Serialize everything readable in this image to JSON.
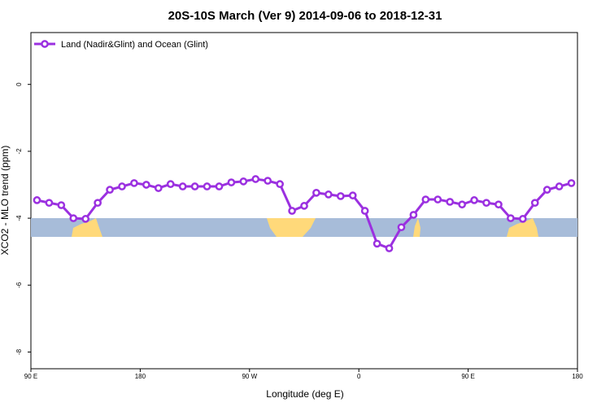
{
  "chart_data": {
    "type": "line",
    "title": "20S-10S March (Ver 9)   2014-09-06 to 2018-12-31",
    "x_label": "Longitude (deg E)",
    "y_label": "XCO2 - MLO trend (ppm)",
    "x": [
      95,
      105,
      115,
      125,
      135,
      145,
      155,
      165,
      175,
      185,
      195,
      205,
      215,
      225,
      235,
      245,
      255,
      265,
      275,
      285,
      295,
      305,
      315,
      325,
      335,
      345,
      355,
      365,
      375,
      385,
      395,
      405,
      415,
      425,
      435,
      445,
      455,
      465,
      475,
      485,
      495,
      505,
      515,
      525,
      535
    ],
    "series": [
      {
        "name": "Land (Nadir&Glint) and Ocean (Glint)",
        "color": "#9b30e0",
        "values": [
          -3.46,
          -3.54,
          -3.61,
          -4.0,
          -4.02,
          -3.54,
          -3.15,
          -3.05,
          -2.95,
          -3.0,
          -3.1,
          -2.98,
          -3.05,
          -3.05,
          -3.05,
          -3.05,
          -2.93,
          -2.9,
          -2.83,
          -2.88,
          -2.98,
          -3.78,
          -3.63,
          -3.24,
          -3.29,
          -3.34,
          -3.32,
          -3.78,
          -4.76,
          -4.9,
          -4.27,
          -3.9,
          -3.44,
          -3.44,
          -3.51,
          -3.59,
          -3.46,
          -3.54,
          -3.59,
          -4.0,
          -4.02,
          -3.54,
          -3.15,
          -3.05,
          -2.95
        ]
      }
    ],
    "xlim": [
      90,
      540
    ],
    "xticks": [
      {
        "value": 90,
        "label": "90 E"
      },
      {
        "value": 180,
        "label": "180"
      },
      {
        "value": 270,
        "label": "90 W"
      },
      {
        "value": 360,
        "label": "0"
      },
      {
        "value": 450,
        "label": "90 E"
      },
      {
        "value": 540,
        "label": "180"
      }
    ],
    "ylim": [
      -8.5,
      1.55
    ],
    "yticks": [
      -8,
      -6,
      -4,
      -2,
      0
    ],
    "legend": "top-left"
  }
}
